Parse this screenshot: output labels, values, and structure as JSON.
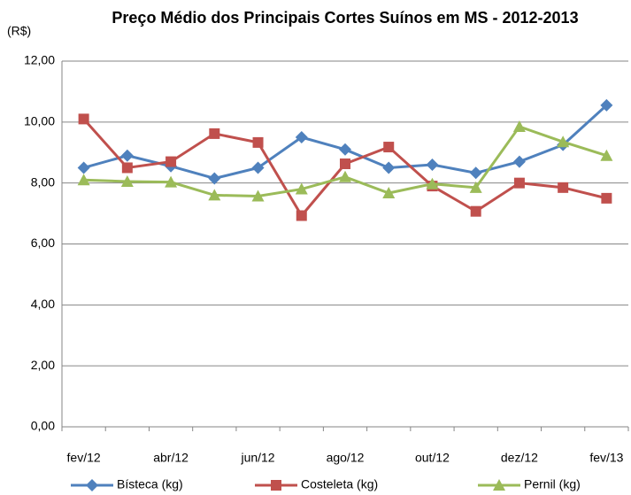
{
  "chart_data": {
    "type": "line",
    "title": "Preço Médio dos Principais Cortes Suínos em MS  - 2012-2013",
    "y_unit": "(R$)",
    "categories": [
      "fev/12",
      null,
      "abr/12",
      null,
      "jun/12",
      null,
      "ago/12",
      null,
      "out/12",
      null,
      "dez/12",
      null,
      "fev/13"
    ],
    "series": [
      {
        "name": "Bísteca (kg)",
        "color": "#4f81bd",
        "marker": "diamond",
        "values": [
          8.5,
          8.9,
          8.55,
          8.15,
          8.5,
          9.5,
          9.1,
          8.5,
          8.6,
          8.33,
          8.7,
          9.25,
          10.55
        ]
      },
      {
        "name": "Costeleta (kg)",
        "color": "#c0504d",
        "marker": "square",
        "values": [
          10.1,
          8.5,
          8.7,
          9.62,
          9.33,
          6.93,
          8.63,
          9.18,
          7.9,
          7.07,
          8.0,
          7.85,
          7.5
        ]
      },
      {
        "name": "Pernil (kg)",
        "color": "#9bbb59",
        "marker": "triangle",
        "values": [
          8.1,
          8.05,
          8.03,
          7.6,
          7.57,
          7.8,
          8.2,
          7.67,
          7.97,
          7.85,
          9.85,
          9.35,
          8.9
        ]
      }
    ],
    "ylim": [
      0,
      12
    ],
    "yticks": [
      {
        "value": 0,
        "label": "0,00"
      },
      {
        "value": 2,
        "label": "2,00"
      },
      {
        "value": 4,
        "label": "4,00"
      },
      {
        "value": 6,
        "label": "6,00"
      },
      {
        "value": 8,
        "label": "8,00"
      },
      {
        "value": 10,
        "label": "10,00"
      },
      {
        "value": 12,
        "label": "12,00"
      }
    ],
    "grid": true,
    "legend": "bottom"
  }
}
